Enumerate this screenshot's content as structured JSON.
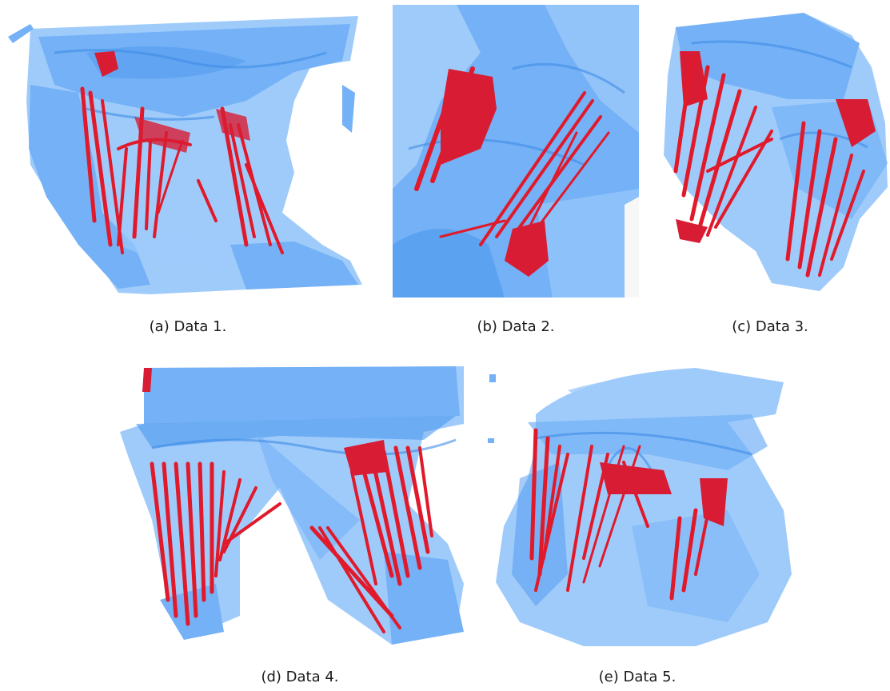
{
  "figure": {
    "panels": [
      {
        "id": "a",
        "caption": "(a)  Data 1."
      },
      {
        "id": "b",
        "caption": "(b)  Data 2."
      },
      {
        "id": "c",
        "caption": "(c)  Data 3."
      },
      {
        "id": "d",
        "caption": "(d)  Data 4."
      },
      {
        "id": "e",
        "caption": "(e)  Data 5."
      }
    ],
    "colors": {
      "bone_light": "#9fcbfb",
      "bone_mid": "#74b1f6",
      "bone_dark": "#4b98ee",
      "muscle_fibers": "#e01a2b"
    }
  }
}
